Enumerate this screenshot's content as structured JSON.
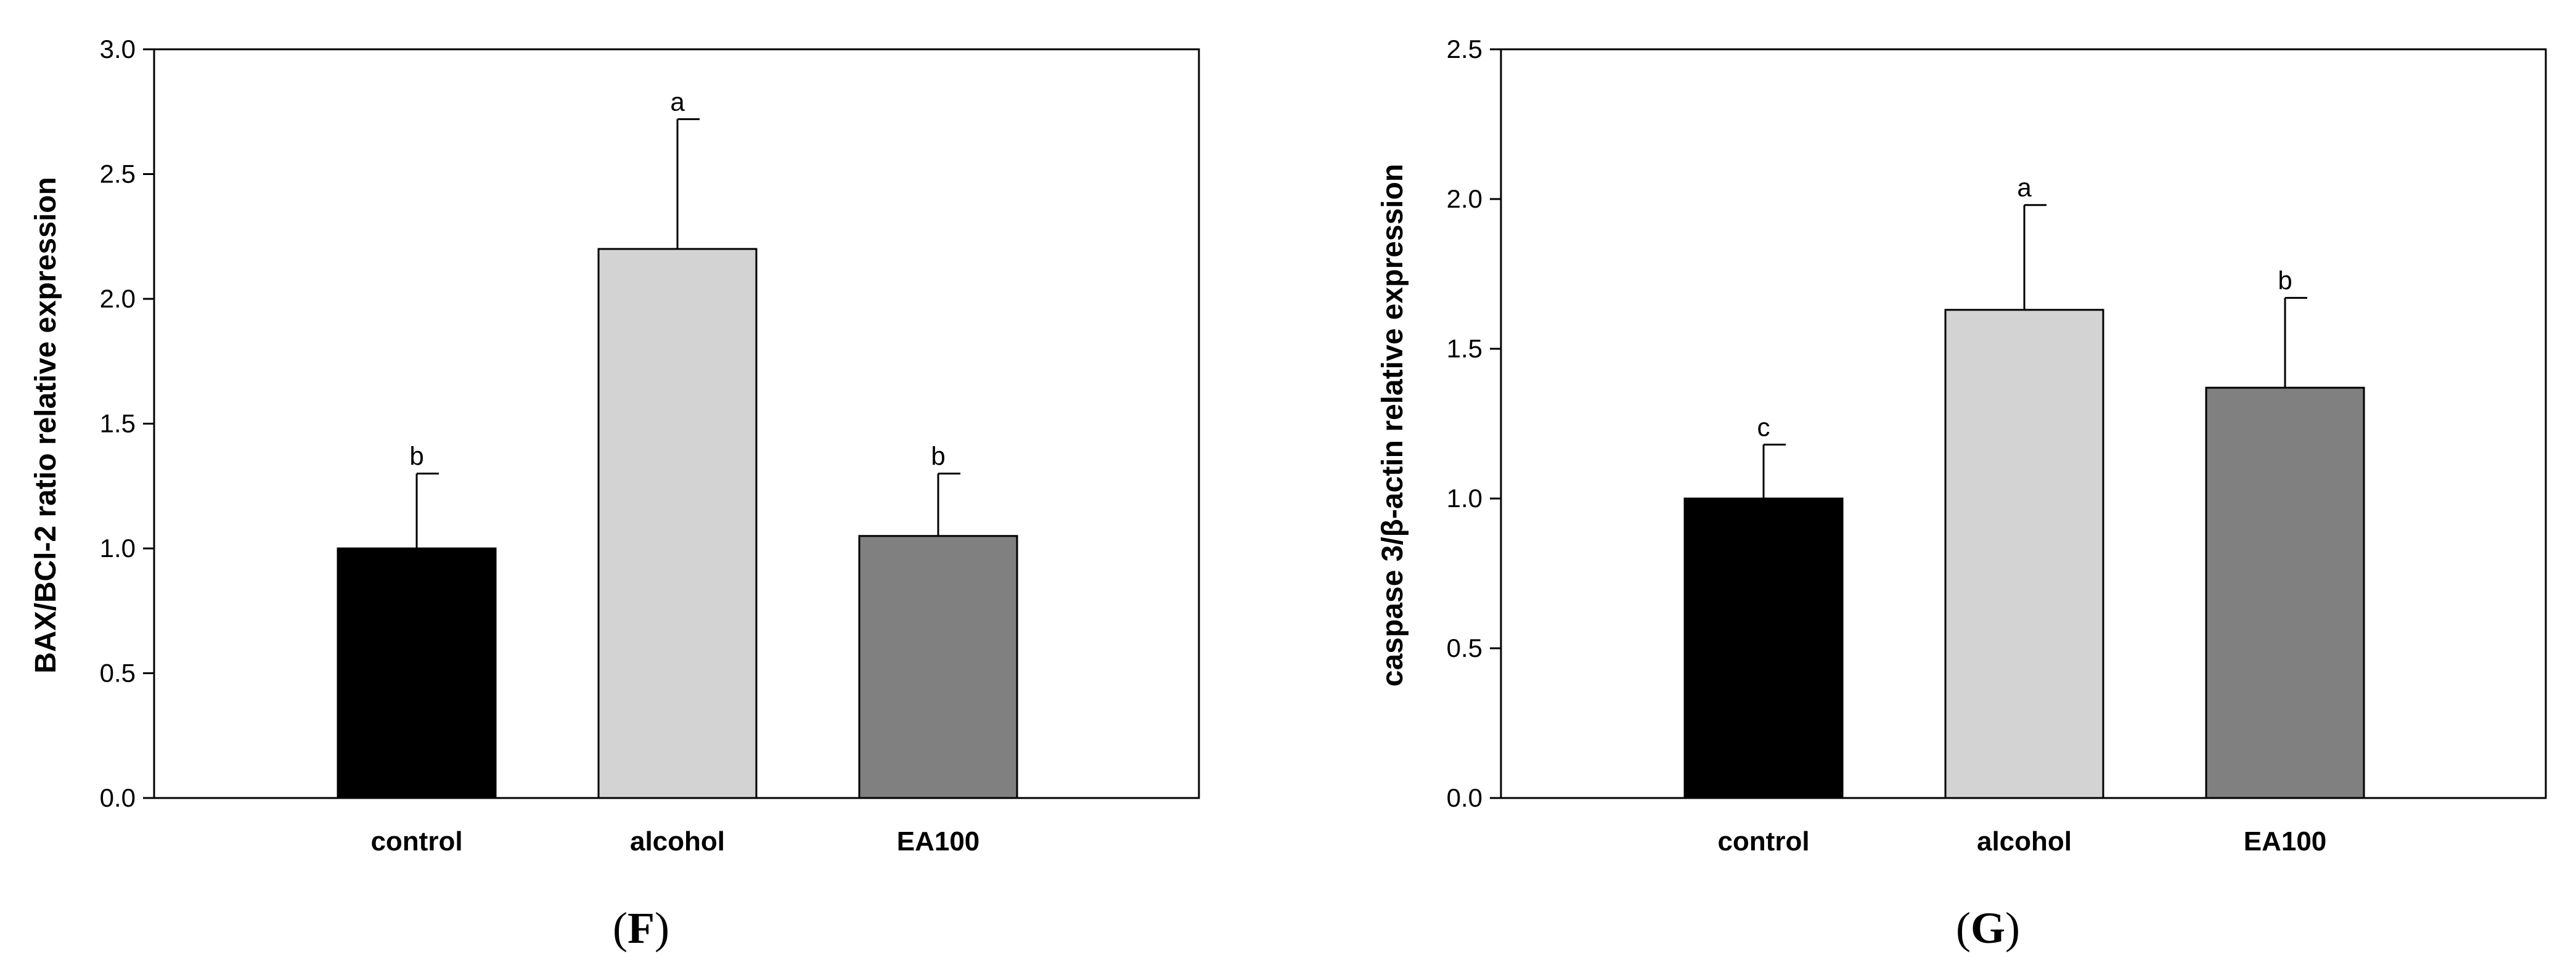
{
  "chart_data": [
    {
      "type": "bar",
      "panel": "F",
      "title": "",
      "xlabel": "",
      "ylabel": "BAX/BCl-2 ratio relative expression",
      "categories": [
        "control",
        "alcohol",
        "EA100"
      ],
      "values": [
        1.0,
        2.2,
        1.05
      ],
      "error": [
        0.3,
        0.52,
        0.25
      ],
      "letters": [
        "b",
        "a",
        "b"
      ],
      "colors": [
        "#000000",
        "#d3d3d3",
        "#808080"
      ],
      "ylim": [
        0,
        3.0
      ],
      "yticks": [
        "0.0",
        "0.5",
        "1.0",
        "1.5",
        "2.0",
        "2.5",
        "3.0"
      ],
      "grid": false
    },
    {
      "type": "bar",
      "panel": "G",
      "title": "",
      "xlabel": "",
      "ylabel": "caspase 3/β-actin relative expression",
      "categories": [
        "control",
        "alcohol",
        "EA100"
      ],
      "values": [
        1.0,
        1.63,
        1.37
      ],
      "error": [
        0.18,
        0.35,
        0.3
      ],
      "letters": [
        "c",
        "a",
        "b"
      ],
      "colors": [
        "#000000",
        "#d3d3d3",
        "#808080"
      ],
      "ylim": [
        0,
        2.5
      ],
      "yticks": [
        "0.0",
        "0.5",
        "1.0",
        "1.5",
        "2.0",
        "2.5"
      ],
      "grid": false
    }
  ]
}
